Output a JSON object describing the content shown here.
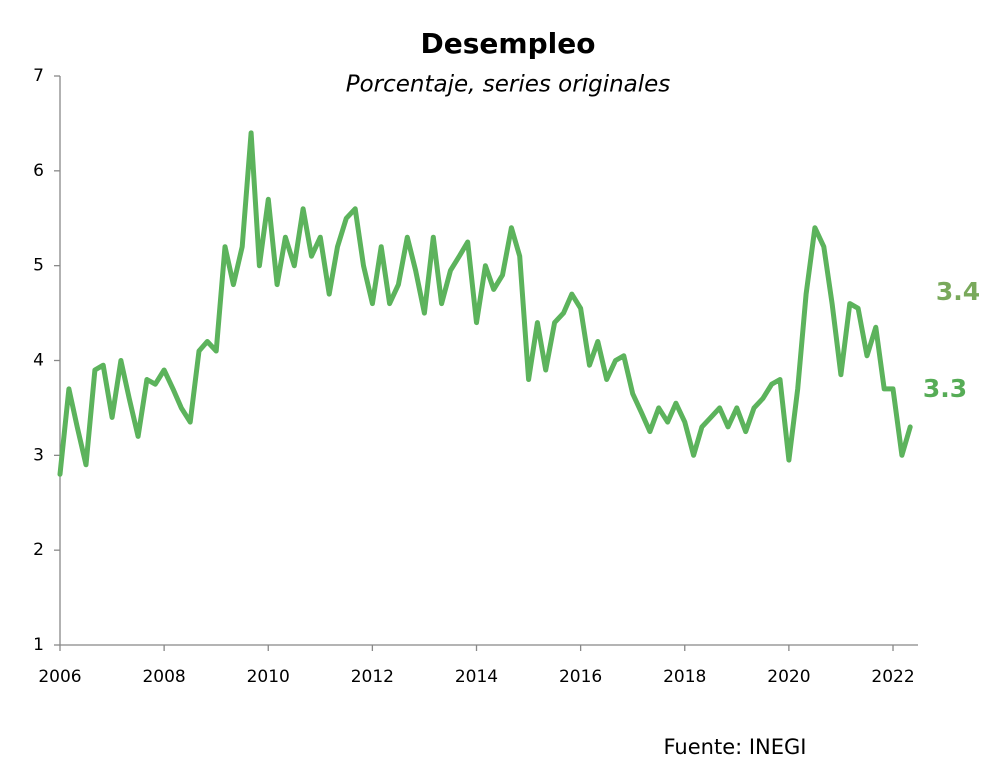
{
  "chart_data": {
    "type": "line",
    "title": "Desempleo",
    "subtitle": "Porcentaje, series originales",
    "source": "Fuente: INEGI",
    "annotations": [
      {
        "text": "3.4",
        "color": "#79a95b"
      },
      {
        "text": "3.3",
        "color": "#56ac56"
      }
    ],
    "xlim": [
      2006,
      2022.48
    ],
    "xticks": [
      2006,
      2008,
      2010,
      2012,
      2014,
      2016,
      2018,
      2020,
      2022
    ],
    "ylim": [
      1,
      7
    ],
    "yticks": [
      1,
      2,
      3,
      4,
      5,
      6,
      7
    ],
    "x": [
      2006.0,
      2006.17,
      2006.33,
      2006.5,
      2006.67,
      2006.83,
      2007.0,
      2007.17,
      2007.33,
      2007.5,
      2007.67,
      2007.83,
      2008.0,
      2008.17,
      2008.33,
      2008.5,
      2008.67,
      2008.83,
      2009.0,
      2009.17,
      2009.33,
      2009.5,
      2009.67,
      2009.83,
      2010.0,
      2010.17,
      2010.33,
      2010.5,
      2010.67,
      2010.83,
      2011.0,
      2011.17,
      2011.33,
      2011.5,
      2011.67,
      2011.83,
      2012.0,
      2012.17,
      2012.33,
      2012.5,
      2012.67,
      2012.83,
      2013.0,
      2013.17,
      2013.33,
      2013.5,
      2013.67,
      2013.83,
      2014.0,
      2014.17,
      2014.33,
      2014.5,
      2014.67,
      2014.83,
      2015.0,
      2015.17,
      2015.33,
      2015.5,
      2015.67,
      2015.83,
      2016.0,
      2016.17,
      2016.33,
      2016.5,
      2016.67,
      2016.83,
      2017.0,
      2017.17,
      2017.33,
      2017.5,
      2017.67,
      2017.83,
      2018.0,
      2018.17,
      2018.33,
      2018.5,
      2018.67,
      2018.83,
      2019.0,
      2019.17,
      2019.33,
      2019.5,
      2019.67,
      2019.83,
      2020.0,
      2020.17,
      2020.33,
      2020.5,
      2020.67,
      2020.83,
      2021.0,
      2021.17,
      2021.33,
      2021.5,
      2021.67,
      2021.83,
      2022.0,
      2022.17,
      2022.33
    ],
    "series": [
      {
        "name": "Desempleo",
        "color": "#5cb35c",
        "values": [
          2.8,
          3.7,
          3.3,
          2.9,
          3.9,
          3.95,
          3.4,
          4.0,
          3.6,
          3.2,
          3.8,
          3.75,
          3.9,
          3.7,
          3.5,
          3.35,
          4.1,
          4.2,
          4.1,
          5.2,
          4.8,
          5.2,
          6.4,
          5.0,
          5.7,
          4.8,
          5.3,
          5.0,
          5.6,
          5.1,
          5.3,
          4.7,
          5.2,
          5.5,
          5.6,
          5.0,
          4.6,
          5.2,
          4.6,
          4.8,
          5.3,
          4.95,
          4.5,
          5.3,
          4.6,
          4.95,
          5.1,
          5.25,
          4.4,
          5.0,
          4.75,
          4.9,
          5.4,
          5.1,
          3.8,
          4.4,
          3.9,
          4.4,
          4.5,
          4.7,
          4.55,
          3.95,
          4.2,
          3.8,
          4.0,
          4.05,
          3.65,
          3.45,
          3.25,
          3.5,
          3.35,
          3.55,
          3.35,
          3.0,
          3.3,
          3.4,
          3.5,
          3.3,
          3.5,
          3.25,
          3.5,
          3.6,
          3.75,
          3.8,
          2.95,
          3.7,
          4.7,
          5.4,
          5.2,
          4.6,
          3.85,
          4.6,
          4.55,
          4.05,
          4.35,
          3.7,
          3.7,
          3.0,
          3.3
        ]
      }
    ]
  }
}
